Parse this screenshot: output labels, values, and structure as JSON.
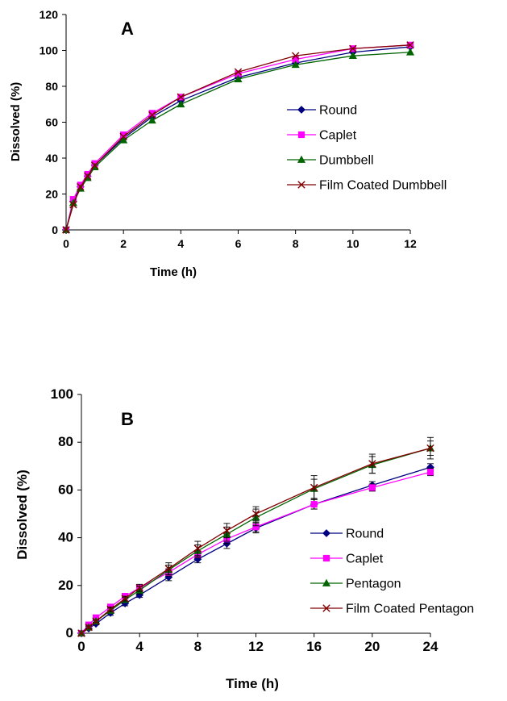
{
  "chart_data": [
    {
      "type": "line",
      "panel_label": "A",
      "xlabel": "Time (h)",
      "ylabel": "Dissolved (%)",
      "xlim": [
        0,
        12
      ],
      "ylim": [
        0,
        120
      ],
      "xticks": [
        0,
        2,
        4,
        6,
        8,
        10,
        12
      ],
      "yticks": [
        0,
        20,
        40,
        60,
        80,
        100,
        120
      ],
      "grid": false,
      "legend_position": "right-middle",
      "x": [
        0,
        0.25,
        0.5,
        0.75,
        1,
        2,
        3,
        4,
        6,
        8,
        10,
        12
      ],
      "series": [
        {
          "name": "Round",
          "color": "#000080",
          "marker": "diamond",
          "values": [
            0,
            16,
            24,
            30,
            36,
            51,
            63,
            72,
            85,
            93,
            99,
            102
          ]
        },
        {
          "name": "Caplet",
          "color": "#ff00ff",
          "marker": "square",
          "values": [
            0,
            17,
            25,
            31,
            37,
            53,
            65,
            74,
            87,
            95,
            101,
            103
          ]
        },
        {
          "name": "Dumbbell",
          "color": "#006400",
          "marker": "triangle",
          "values": [
            0,
            15,
            23,
            29,
            35,
            50,
            61,
            70,
            84,
            92,
            97,
            99
          ]
        },
        {
          "name": "Film Coated Dumbbell",
          "color": "#800000",
          "marker": "x",
          "values": [
            0,
            14,
            24,
            30,
            36,
            52,
            64,
            74,
            88,
            97,
            101,
            103
          ]
        }
      ]
    },
    {
      "type": "line",
      "panel_label": "B",
      "xlabel": "Time (h)",
      "ylabel": "Dissolved (%)",
      "xlim": [
        0,
        24
      ],
      "ylim": [
        0,
        100
      ],
      "xticks": [
        0,
        4,
        8,
        12,
        16,
        20,
        24
      ],
      "yticks": [
        0,
        20,
        40,
        60,
        80,
        100
      ],
      "grid": false,
      "legend_position": "right-bottom",
      "x": [
        0,
        0.5,
        1,
        2,
        3,
        4,
        6,
        8,
        10,
        12,
        16,
        20,
        24
      ],
      "series": [
        {
          "name": "Round",
          "color": "#000080",
          "marker": "diamond",
          "values": [
            0,
            2,
            4,
            8.5,
            12.5,
            16,
            23.5,
            31,
            37.5,
            44,
            54,
            62,
            69.5
          ],
          "error": [
            0,
            0.5,
            0.5,
            1,
            1,
            1,
            1.5,
            1.5,
            2,
            2,
            2,
            1.5,
            1.5
          ]
        },
        {
          "name": "Caplet",
          "color": "#ff00ff",
          "marker": "square",
          "values": [
            0,
            3.5,
            6.5,
            11,
            15.5,
            19,
            25.5,
            33,
            39.5,
            44.5,
            54,
            61,
            67.5
          ],
          "error": [
            0,
            0.5,
            0.5,
            1,
            1,
            1,
            1.5,
            1.5,
            2,
            2,
            2,
            1.5,
            1.5
          ]
        },
        {
          "name": "Pentagon",
          "color": "#006400",
          "marker": "triangle",
          "values": [
            0,
            2.5,
            5,
            9.5,
            14,
            18,
            26.5,
            34.5,
            41.5,
            48.5,
            60.5,
            70.5,
            77.5
          ],
          "error": [
            0,
            0.5,
            0.5,
            1,
            1,
            1.5,
            2,
            2.5,
            3,
            3.5,
            4,
            3.5,
            3
          ]
        },
        {
          "name": "Film Coated Pentagon",
          "color": "#800000",
          "marker": "x",
          "values": [
            0,
            2.5,
            5,
            10,
            14.5,
            19,
            27,
            35.5,
            43,
            50,
            61,
            71,
            77.5
          ],
          "error": [
            0,
            0.5,
            0.5,
            1,
            1,
            1.5,
            2.5,
            3,
            3,
            3,
            5,
            4,
            4.5
          ]
        }
      ]
    }
  ]
}
